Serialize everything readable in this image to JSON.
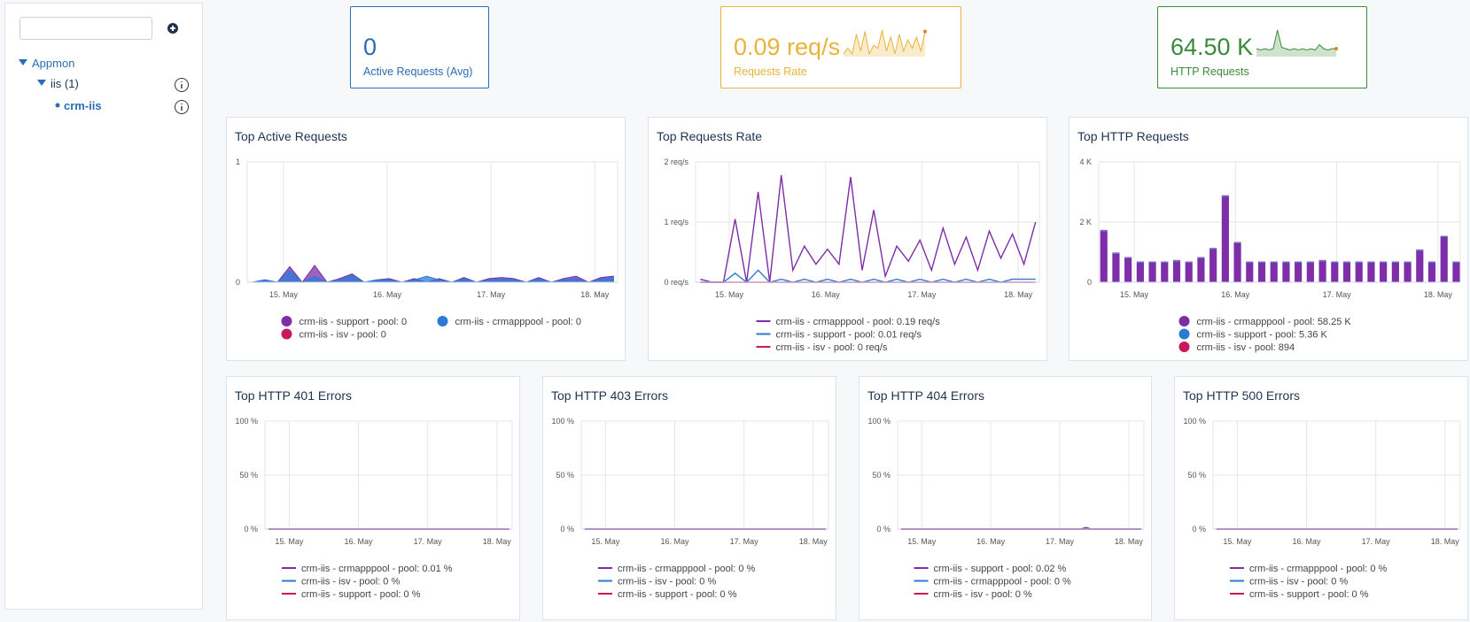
{
  "sidebar": {
    "tree": [
      {
        "label": "Appmon"
      },
      {
        "label": "iis (1)"
      },
      {
        "label": "crm-iis"
      }
    ]
  },
  "kpis": [
    {
      "value": "0",
      "label": "Active Requests (Avg)",
      "color": "#2a6db5"
    },
    {
      "value": "0.09 req/s",
      "label": "Requests Rate",
      "color": "#e8b339",
      "sparkline": [
        0.1,
        0.3,
        0.1,
        0.8,
        0.2,
        0.9,
        0.1,
        0.4,
        0.3,
        0.95,
        0.2,
        0.7,
        0.1,
        0.8,
        0.2,
        0.6,
        0.3,
        0.7,
        0.2,
        0.9
      ]
    },
    {
      "value": "64.50 K",
      "label": "HTTP Requests",
      "color": "#3a8a3a",
      "sparkline": [
        0.3,
        0.25,
        0.3,
        0.25,
        0.3,
        1,
        0.35,
        0.3,
        0.25,
        0.3,
        0.25,
        0.3,
        0.25,
        0.3,
        0.25,
        0.45,
        0.3,
        0.25,
        0.3,
        0.3
      ]
    }
  ],
  "chart_data": [
    {
      "type": "area",
      "title": "Top Active Requests",
      "x": [
        14.7,
        14.82,
        14.94,
        15.06,
        15.18,
        15.3,
        15.42,
        15.54,
        15.66,
        15.78,
        15.9,
        16.02,
        16.14,
        16.26,
        16.38,
        16.5,
        16.62,
        16.74,
        16.86,
        16.98,
        17.1,
        17.22,
        17.34,
        17.46,
        17.58,
        17.7,
        17.82,
        17.94,
        18.06,
        18.18
      ],
      "xlim": [
        14.65,
        18.22
      ],
      "xticks": [
        {
          "value": 15,
          "label": "15. May"
        },
        {
          "value": 16,
          "label": "16. May"
        },
        {
          "value": 17,
          "label": "17. May"
        },
        {
          "value": 18,
          "label": "18. May"
        }
      ],
      "ylim": [
        0,
        1
      ],
      "yticks": [
        0,
        1
      ],
      "grid": true,
      "series": [
        {
          "name": "crm-iis - support - pool: 0",
          "color": "#7d2ea8",
          "values": [
            0,
            0.02,
            0,
            0.13,
            0,
            0.14,
            0,
            0.03,
            0.07,
            0,
            0.02,
            0.03,
            0,
            0.03,
            0,
            0.03,
            0,
            0.04,
            0,
            0.03,
            0.04,
            0.03,
            0,
            0.04,
            0,
            0.03,
            0.05,
            0,
            0.04,
            0.05
          ]
        },
        {
          "name": "crm-iis - crmapppool - pool: 0",
          "color": "#2b7bd6",
          "values": [
            0,
            0.02,
            0,
            0.1,
            0,
            0.05,
            0,
            0.02,
            0.06,
            0,
            0.02,
            0.02,
            0,
            0.02,
            0.05,
            0.02,
            0,
            0.03,
            0,
            0.02,
            0.03,
            0.02,
            0,
            0.03,
            0,
            0.02,
            0.03,
            0,
            0.03,
            0.04
          ]
        },
        {
          "name": "crm-iis - isv - pool: 0",
          "color": "#c8195c",
          "values": [
            0,
            0,
            0,
            0,
            0,
            0,
            0,
            0,
            0,
            0,
            0,
            0,
            0,
            0,
            0,
            0,
            0,
            0,
            0,
            0,
            0,
            0,
            0,
            0,
            0,
            0,
            0,
            0,
            0,
            0
          ]
        }
      ]
    },
    {
      "type": "line",
      "title": "Top Requests Rate",
      "x": [
        14.7,
        14.82,
        14.94,
        15.06,
        15.18,
        15.3,
        15.42,
        15.54,
        15.66,
        15.78,
        15.9,
        16.02,
        16.14,
        16.26,
        16.38,
        16.5,
        16.62,
        16.74,
        16.86,
        16.98,
        17.1,
        17.22,
        17.34,
        17.46,
        17.58,
        17.7,
        17.82,
        17.94,
        18.06,
        18.18
      ],
      "xlim": [
        14.65,
        18.22
      ],
      "xticks": [
        {
          "value": 15,
          "label": "15. May"
        },
        {
          "value": 16,
          "label": "16. May"
        },
        {
          "value": 17,
          "label": "17. May"
        },
        {
          "value": 18,
          "label": "18. May"
        }
      ],
      "ylim": [
        0,
        2
      ],
      "yticks": [
        {
          "value": 0,
          "label": "0 req/s"
        },
        {
          "value": 1,
          "label": "1 req/s"
        },
        {
          "value": 2,
          "label": "2 req/s"
        }
      ],
      "grid": true,
      "series": [
        {
          "name": "crm-iis - crmapppool - pool: 0.19 req/s",
          "color": "#7d2ea8",
          "values": [
            0.05,
            0,
            0,
            1.05,
            0,
            1.5,
            0,
            1.78,
            0.2,
            0.6,
            0.3,
            0.55,
            0.3,
            1.75,
            0.2,
            1.2,
            0.1,
            0.6,
            0.35,
            0.7,
            0.2,
            0.9,
            0.3,
            0.75,
            0.2,
            0.85,
            0.4,
            0.8,
            0.3,
            1
          ]
        },
        {
          "name": "crm-iis - support - pool: 0.01 req/s",
          "color": "#2b7bd6",
          "values": [
            0,
            0,
            0,
            0.15,
            0,
            0.2,
            0,
            0.05,
            0,
            0.05,
            0,
            0.05,
            0,
            0.05,
            0,
            0.05,
            0,
            0.05,
            0,
            0.05,
            0,
            0.05,
            0,
            0.05,
            0,
            0.05,
            0,
            0.05,
            0.05,
            0.05
          ]
        },
        {
          "name": "crm-iis - isv - pool: 0 req/s",
          "color": "#c8195c",
          "values": [
            0,
            0,
            0,
            0,
            0,
            0,
            0,
            0,
            0,
            0,
            0,
            0,
            0,
            0,
            0,
            0,
            0,
            0,
            0,
            0,
            0,
            0,
            0,
            0,
            0,
            0,
            0,
            0,
            0,
            0
          ]
        }
      ]
    },
    {
      "type": "bar",
      "title": "Top HTTP Requests",
      "x": [
        14.7,
        14.82,
        14.94,
        15.06,
        15.18,
        15.3,
        15.42,
        15.54,
        15.66,
        15.78,
        15.9,
        16.02,
        16.14,
        16.26,
        16.38,
        16.5,
        16.62,
        16.74,
        16.86,
        16.98,
        17.1,
        17.22,
        17.34,
        17.46,
        17.58,
        17.7,
        17.82,
        17.94,
        18.06,
        18.18
      ],
      "xlim": [
        14.65,
        18.22
      ],
      "xticks": [
        {
          "value": 15,
          "label": "15. May"
        },
        {
          "value": 16,
          "label": "16. May"
        },
        {
          "value": 17,
          "label": "17. May"
        },
        {
          "value": 18,
          "label": "18. May"
        }
      ],
      "ylim": [
        0,
        4000
      ],
      "yticks": [
        0,
        {
          "value": 2000,
          "label": "2 K"
        },
        {
          "value": 4000,
          "label": "4 K"
        }
      ],
      "grid": true,
      "series": [
        {
          "name": "crm-iis - crmapppool - pool: 58.25 K",
          "color": "#7d2ea8",
          "values": [
            1700,
            950,
            800,
            650,
            650,
            650,
            700,
            650,
            800,
            1100,
            2850,
            1300,
            650,
            650,
            650,
            650,
            650,
            650,
            700,
            650,
            650,
            650,
            650,
            650,
            650,
            650,
            1050,
            650,
            1500,
            650
          ]
        },
        {
          "name": "crm-iis - support - pool: 5.36 K",
          "color": "#2b7bd6",
          "values": [
            30,
            30,
            30,
            30,
            30,
            30,
            30,
            30,
            30,
            30,
            30,
            30,
            30,
            30,
            30,
            30,
            30,
            30,
            30,
            30,
            30,
            30,
            30,
            30,
            30,
            30,
            30,
            30,
            30,
            30
          ]
        },
        {
          "name": "crm-iis - isv - pool: 894",
          "color": "#c8195c",
          "values": [
            10,
            10,
            10,
            10,
            10,
            10,
            10,
            10,
            10,
            10,
            10,
            10,
            10,
            10,
            10,
            10,
            10,
            10,
            10,
            10,
            10,
            10,
            10,
            10,
            10,
            10,
            10,
            10,
            10,
            10
          ]
        }
      ]
    },
    {
      "type": "line",
      "title": "Top HTTP 401 Errors",
      "x": [
        14.7,
        18.18
      ],
      "xlim": [
        14.65,
        18.22
      ],
      "xticks": [
        {
          "value": 15,
          "label": "15. May"
        },
        {
          "value": 16,
          "label": "16. May"
        },
        {
          "value": 17,
          "label": "17. May"
        },
        {
          "value": 18,
          "label": "18. May"
        }
      ],
      "ylim": [
        0,
        100
      ],
      "yticks": [
        {
          "value": 0,
          "label": "0 %"
        },
        {
          "value": 50,
          "label": "50 %"
        },
        {
          "value": 100,
          "label": "100 %"
        }
      ],
      "grid": true,
      "series": [
        {
          "name": "crm-iis - crmapppool - pool: 0.01 %",
          "color": "#7d2ea8",
          "values": [
            0,
            0
          ]
        },
        {
          "name": "crm-iis - isv - pool: 0 %",
          "color": "#2b7bd6",
          "values": [
            0,
            0
          ]
        },
        {
          "name": "crm-iis - support - pool: 0 %",
          "color": "#c8195c",
          "values": [
            0,
            0
          ]
        }
      ]
    },
    {
      "type": "line",
      "title": "Top HTTP 403 Errors",
      "x": [
        14.7,
        18.18
      ],
      "xlim": [
        14.65,
        18.22
      ],
      "xticks": [
        {
          "value": 15,
          "label": "15. May"
        },
        {
          "value": 16,
          "label": "16. May"
        },
        {
          "value": 17,
          "label": "17. May"
        },
        {
          "value": 18,
          "label": "18. May"
        }
      ],
      "ylim": [
        0,
        100
      ],
      "yticks": [
        {
          "value": 0,
          "label": "0 %"
        },
        {
          "value": 50,
          "label": "50 %"
        },
        {
          "value": 100,
          "label": "100 %"
        }
      ],
      "grid": true,
      "series": [
        {
          "name": "crm-iis - crmapppool - pool: 0 %",
          "color": "#7d2ea8",
          "values": [
            0,
            0
          ]
        },
        {
          "name": "crm-iis - isv - pool: 0 %",
          "color": "#2b7bd6",
          "values": [
            0,
            0
          ]
        },
        {
          "name": "crm-iis - support - pool: 0 %",
          "color": "#c8195c",
          "values": [
            0,
            0
          ]
        }
      ]
    },
    {
      "type": "line",
      "title": "Top HTTP 404 Errors",
      "x": [
        14.7,
        17.3,
        17.38,
        17.46,
        18.18
      ],
      "xlim": [
        14.65,
        18.22
      ],
      "xticks": [
        {
          "value": 15,
          "label": "15. May"
        },
        {
          "value": 16,
          "label": "16. May"
        },
        {
          "value": 17,
          "label": "17. May"
        },
        {
          "value": 18,
          "label": "18. May"
        }
      ],
      "ylim": [
        0,
        100
      ],
      "yticks": [
        {
          "value": 0,
          "label": "0 %"
        },
        {
          "value": 50,
          "label": "50 %"
        },
        {
          "value": 100,
          "label": "100 %"
        }
      ],
      "grid": true,
      "series": [
        {
          "name": "crm-iis - support - pool: 0.02 %",
          "color": "#7d2ea8",
          "values": [
            0,
            0,
            1.5,
            0,
            0
          ]
        },
        {
          "name": "crm-iis - crmapppool - pool: 0 %",
          "color": "#2b7bd6",
          "values": [
            0,
            0,
            0,
            0,
            0
          ]
        },
        {
          "name": "crm-iis - isv - pool: 0 %",
          "color": "#c8195c",
          "values": [
            0,
            0,
            0,
            0,
            0
          ]
        }
      ]
    },
    {
      "type": "line",
      "title": "Top HTTP 500 Errors",
      "x": [
        14.7,
        18.18
      ],
      "xlim": [
        14.65,
        18.22
      ],
      "xticks": [
        {
          "value": 15,
          "label": "15. May"
        },
        {
          "value": 16,
          "label": "16. May"
        },
        {
          "value": 17,
          "label": "17. May"
        },
        {
          "value": 18,
          "label": "18. May"
        }
      ],
      "ylim": [
        0,
        100
      ],
      "yticks": [
        {
          "value": 0,
          "label": "0 %"
        },
        {
          "value": 50,
          "label": "50 %"
        },
        {
          "value": 100,
          "label": "100 %"
        }
      ],
      "grid": true,
      "series": [
        {
          "name": "crm-iis - crmapppool - pool: 0 %",
          "color": "#7d2ea8",
          "values": [
            0,
            0
          ]
        },
        {
          "name": "crm-iis - isv - pool: 0 %",
          "color": "#2b7bd6",
          "values": [
            0,
            0
          ]
        },
        {
          "name": "crm-iis - support - pool: 0 %",
          "color": "#c8195c",
          "values": [
            0,
            0
          ]
        }
      ]
    }
  ]
}
